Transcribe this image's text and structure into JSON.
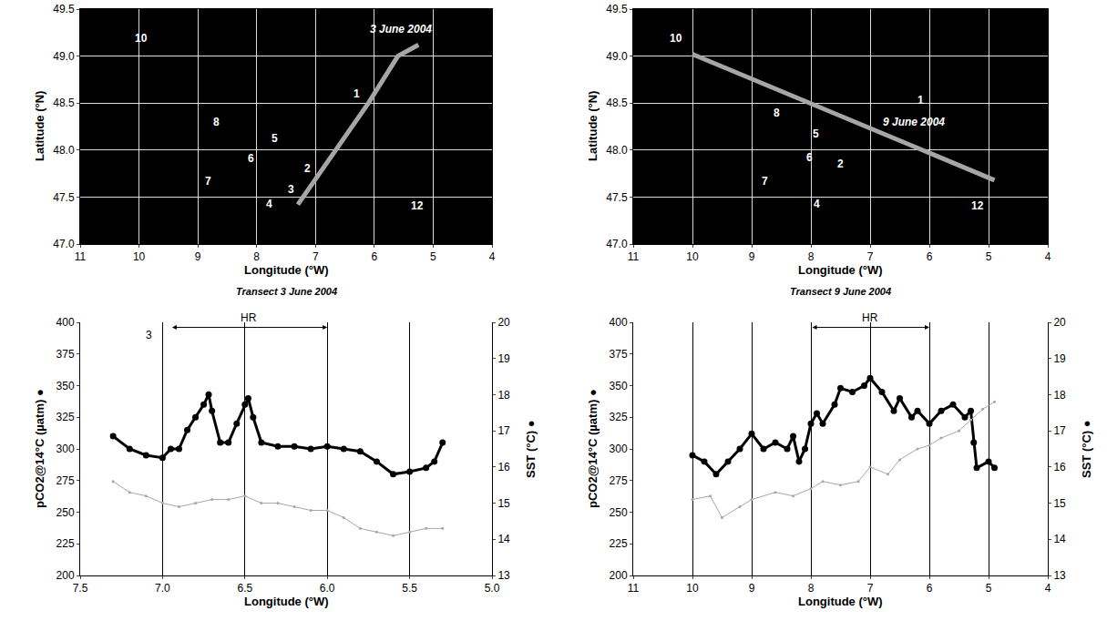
{
  "chart_data": [
    {
      "type": "line",
      "color": "#a6a6a6",
      "x": [
        7.3,
        6.1,
        5.6,
        5.25
      ],
      "y": [
        47.42,
        48.5,
        49.0,
        49.12
      ],
      "xlabel": "Longitude (°W)",
      "ylabel": "Latitude (°N)",
      "xlim": [
        11,
        4
      ],
      "xticks": [
        11,
        10,
        9,
        8,
        7,
        6,
        5,
        4
      ],
      "ylim": [
        47,
        49.5
      ],
      "yticks": [
        {
          "value": 47,
          "label": "47.0"
        },
        47.5,
        {
          "value": 48,
          "label": "48.0"
        },
        48.5,
        {
          "value": 49,
          "label": "49.0"
        },
        49.5
      ],
      "grid": true,
      "annotations": [
        {
          "text": "10",
          "x": 9.96,
          "y": 49.19
        },
        {
          "text": "3 June 2004",
          "x": 5.55,
          "y": 49.29
        },
        {
          "text": "1",
          "x": 6.3,
          "y": 48.6
        },
        {
          "text": "8",
          "x": 8.69,
          "y": 48.3
        },
        {
          "text": "5",
          "x": 7.69,
          "y": 48.12
        },
        {
          "text": "6",
          "x": 8.1,
          "y": 47.91
        },
        {
          "text": "2",
          "x": 7.13,
          "y": 47.8
        },
        {
          "text": "7",
          "x": 8.83,
          "y": 47.67
        },
        {
          "text": "3",
          "x": 7.41,
          "y": 47.58
        },
        {
          "text": "4",
          "x": 7.78,
          "y": 47.43
        },
        {
          "text": "12",
          "x": 5.27,
          "y": 47.41
        }
      ]
    },
    {
      "type": "line",
      "color": "#a6a6a6",
      "x": [
        10.0,
        4.9
      ],
      "y": [
        49.02,
        47.68
      ],
      "xlabel": "Longitude (°W)",
      "ylabel": "Latitude (°N)",
      "xlim": [
        11,
        4
      ],
      "xticks": [
        11,
        10,
        9,
        8,
        7,
        6,
        5,
        4
      ],
      "ylim": [
        47,
        49.5
      ],
      "yticks": [
        {
          "value": 47,
          "label": "47.0"
        },
        47.5,
        {
          "value": 48,
          "label": "48.0"
        },
        48.5,
        {
          "value": 49,
          "label": "49.0"
        },
        49.5
      ],
      "grid": true,
      "annotations": [
        {
          "text": "10",
          "x": 10.28,
          "y": 49.19
        },
        {
          "text": "1",
          "x": 6.14,
          "y": 48.53
        },
        {
          "text": "8",
          "x": 8.58,
          "y": 48.4
        },
        {
          "text": "9 June 2004",
          "x": 6.26,
          "y": 48.3
        },
        {
          "text": "5",
          "x": 7.91,
          "y": 48.17
        },
        {
          "text": "6",
          "x": 8.02,
          "y": 47.92
        },
        {
          "text": "2",
          "x": 7.5,
          "y": 47.85
        },
        {
          "text": "7",
          "x": 8.78,
          "y": 47.67
        },
        {
          "text": "4",
          "x": 7.9,
          "y": 47.43
        },
        {
          "text": "12",
          "x": 5.19,
          "y": 47.41
        }
      ]
    },
    {
      "type": "scatter",
      "title": "Transect 3 June 2004",
      "xlabel": "Longitude (°W)",
      "ylabel": "pCO2@14°C (µatm) ●",
      "y2label": "SST (°C) ●",
      "xlim": [
        7.5,
        5.0
      ],
      "xticks": [
        7.5,
        {
          "value": 7,
          "label": "7.0"
        },
        6.5,
        {
          "value": 6,
          "label": "6.0"
        },
        5.5,
        {
          "value": 5,
          "label": "5.0"
        }
      ],
      "ylim": [
        200,
        400
      ],
      "yticks": [
        200,
        225,
        250,
        275,
        300,
        325,
        350,
        375,
        400
      ],
      "y2lim": [
        13,
        20
      ],
      "y2ticks": [
        13,
        14,
        15,
        16,
        17,
        18,
        19,
        20
      ],
      "grid": true,
      "series": [
        {
          "color": "#000000",
          "marker": "circle",
          "x": [
            7.3,
            7.2,
            7.1,
            7.0,
            6.95,
            6.9,
            6.85,
            6.8,
            6.75,
            6.72,
            6.7,
            6.65,
            6.6,
            6.55,
            6.5,
            6.48,
            6.45,
            6.4,
            6.3,
            6.2,
            6.1,
            6.0,
            5.9,
            5.8,
            5.7,
            5.6,
            5.5,
            5.4,
            5.35,
            5.3
          ],
          "values": [
            310,
            300,
            295,
            293,
            300,
            300,
            315,
            325,
            335,
            343,
            330,
            305,
            305,
            320,
            335,
            340,
            325,
            305,
            302,
            302,
            300,
            302,
            300,
            298,
            290,
            280,
            282,
            285,
            290,
            305
          ]
        },
        {
          "color": "#a6a6a6",
          "marker": "circle",
          "axis": "y2",
          "x": [
            7.3,
            7.2,
            7.1,
            7.0,
            6.9,
            6.8,
            6.7,
            6.6,
            6.5,
            6.4,
            6.3,
            6.2,
            6.1,
            6.0,
            5.9,
            5.8,
            5.7,
            5.6,
            5.5,
            5.4,
            5.3
          ],
          "values": [
            15.6,
            15.3,
            15.2,
            15.0,
            14.9,
            15.0,
            15.1,
            15.1,
            15.2,
            15.0,
            15.0,
            14.9,
            14.8,
            14.8,
            14.6,
            14.3,
            14.2,
            14.1,
            14.2,
            14.3,
            14.3
          ]
        }
      ],
      "annotations": [
        {
          "text": "HR",
          "x_start": 6.95,
          "x_end": 6.0,
          "y": 396
        },
        {
          "text": "3",
          "x": 7.08,
          "y": 390
        }
      ]
    },
    {
      "type": "scatter",
      "title": "Transect 9 June 2004",
      "xlabel": "Longitude (°W)",
      "ylabel": "pCO2@14°C (µatm) ●",
      "y2label": "SST (°C) ●",
      "xlim": [
        11,
        4
      ],
      "xticks": [
        11,
        10,
        9,
        8,
        7,
        6,
        5,
        4
      ],
      "ylim": [
        200,
        400
      ],
      "yticks": [
        200,
        225,
        250,
        275,
        300,
        325,
        350,
        375,
        400
      ],
      "y2lim": [
        13,
        20
      ],
      "y2ticks": [
        13,
        14,
        15,
        16,
        17,
        18,
        19,
        20
      ],
      "grid": true,
      "series": [
        {
          "color": "#000000",
          "marker": "circle",
          "x": [
            10,
            9.8,
            9.6,
            9.4,
            9.2,
            9.0,
            8.8,
            8.6,
            8.4,
            8.3,
            8.2,
            8.1,
            8.0,
            7.9,
            7.8,
            7.6,
            7.5,
            7.3,
            7.1,
            7.0,
            6.8,
            6.6,
            6.5,
            6.3,
            6.2,
            6.0,
            5.8,
            5.6,
            5.4,
            5.3,
            5.25,
            5.2,
            5.0,
            4.9
          ],
          "values": [
            295,
            290,
            280,
            290,
            300,
            312,
            300,
            305,
            300,
            310,
            290,
            300,
            320,
            328,
            320,
            335,
            348,
            345,
            350,
            356,
            345,
            330,
            340,
            325,
            330,
            320,
            330,
            335,
            325,
            330,
            305,
            285,
            290,
            285
          ]
        },
        {
          "color": "#a6a6a6",
          "marker": "circle",
          "axis": "y2",
          "x": [
            10,
            9.7,
            9.5,
            9.2,
            9.0,
            8.6,
            8.3,
            8.0,
            7.8,
            7.5,
            7.2,
            7.0,
            6.7,
            6.5,
            6.2,
            6.0,
            5.8,
            5.5,
            5.3,
            5.1,
            4.9
          ],
          "values": [
            15.1,
            15.2,
            14.6,
            14.9,
            15.1,
            15.3,
            15.2,
            15.4,
            15.6,
            15.5,
            15.6,
            16.0,
            15.8,
            16.2,
            16.5,
            16.6,
            16.8,
            17.0,
            17.3,
            17.6,
            17.8
          ]
        }
      ],
      "annotations": [
        {
          "text": "HR",
          "x_start": 8.0,
          "x_end": 6.0,
          "y": 396
        }
      ]
    }
  ]
}
